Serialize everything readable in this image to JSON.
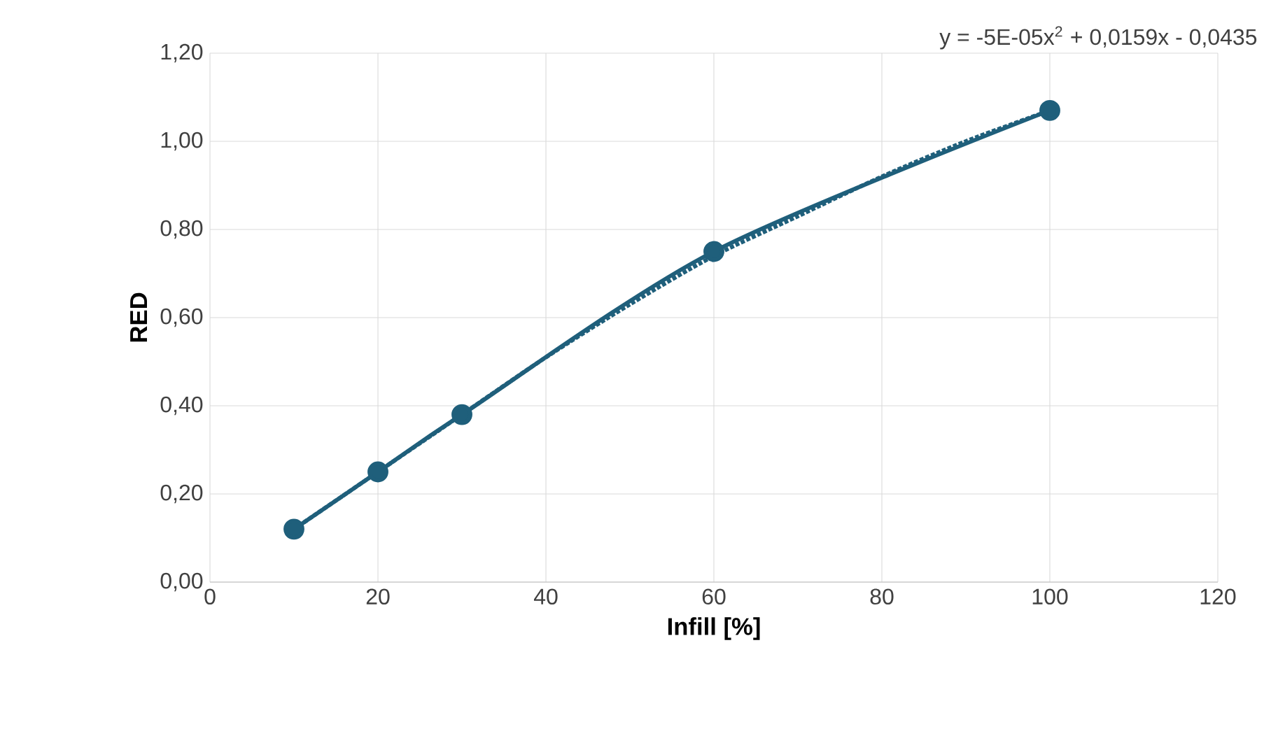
{
  "chart_data": {
    "type": "line",
    "xlabel": "Infill [%]",
    "ylabel": "RED",
    "annotations": [
      "y = -5E-05x$^{2}$ + 0,0159x - 0,0435"
    ],
    "series": [
      {
        "color": "#1f5f7b",
        "x": [
          10,
          20,
          30,
          60,
          100
        ],
        "values": [
          0.12,
          0.25,
          0.38,
          0.75,
          1.07
        ],
        "marker": "circle",
        "line_style": "solid"
      },
      {
        "color": "#1f5f7b",
        "x": [
          10,
          20,
          30,
          40,
          50,
          60,
          70,
          80,
          90,
          100
        ],
        "values": [
          0.12,
          0.25,
          0.38,
          0.51,
          0.63,
          0.74,
          0.83,
          0.92,
          1.0,
          1.07
        ],
        "marker": "none",
        "line_style": "dotted"
      }
    ],
    "xlim": [
      0,
      120
    ],
    "xticks": [
      0,
      20,
      40,
      60,
      80,
      100,
      120
    ],
    "ylim": [
      0,
      1.2
    ],
    "yticks": [
      {
        "value": 0,
        "label": "0,00"
      },
      {
        "value": 0.2,
        "label": "0,20"
      },
      {
        "value": 0.4,
        "label": "0,40"
      },
      {
        "value": 0.6,
        "label": "0,60"
      },
      {
        "value": 0.8,
        "label": "0,80"
      },
      {
        "value": 1.0,
        "label": "1,00"
      },
      {
        "value": 1.2,
        "label": "1,20"
      }
    ],
    "grid": true
  }
}
